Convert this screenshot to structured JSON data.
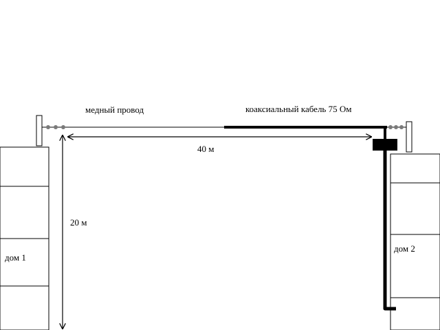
{
  "labels": {
    "copper_wire": "медный провод",
    "coax_cable": "коаксиальный кабель  75  Ом",
    "distance": "40 м",
    "height": "20 м",
    "house1": "дом 1",
    "house2": "дом 2"
  },
  "colors": {
    "line": "#000000",
    "insulator": "#7a7a7a",
    "background": "#ffffff"
  }
}
